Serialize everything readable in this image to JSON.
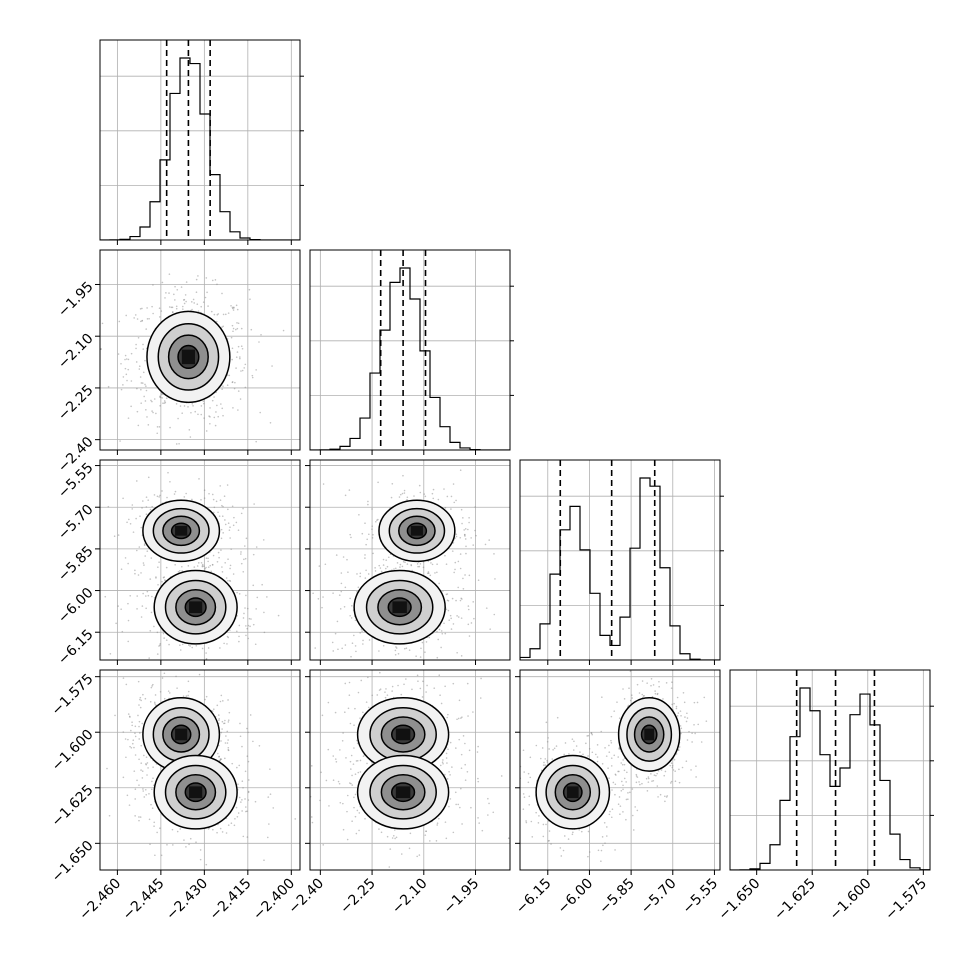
{
  "chart_data": {
    "type": "corner",
    "parameters": [
      {
        "index": 0,
        "range": [
          -2.466,
          -2.397
        ],
        "ticks": [
          -2.46,
          -2.445,
          -2.43,
          -2.415,
          -2.4
        ],
        "tick_labels": [
          "−2.460",
          "−2.445",
          "−2.430",
          "−2.415",
          "−2.400"
        ],
        "quantiles": [
          -2.443,
          -2.4355,
          -2.428
        ],
        "modes": [
          {
            "mu": -2.4355,
            "sd": 0.0065,
            "w": 1
          }
        ]
      },
      {
        "index": 1,
        "range": [
          -2.43,
          -1.85
        ],
        "ticks": [
          -2.4,
          -2.25,
          -2.1,
          -1.95
        ],
        "tick_labels": [
          "−2.40",
          "−2.25",
          "−2.10",
          "−1.95"
        ],
        "quantiles": [
          -2.225,
          -2.16,
          -2.095
        ],
        "modes": [
          {
            "mu": -2.16,
            "sd": 0.06,
            "w": 1
          }
        ]
      },
      {
        "index": 2,
        "range": [
          -6.25,
          -5.53
        ],
        "ticks": [
          -6.15,
          -6.0,
          -5.85,
          -5.7,
          -5.55
        ],
        "tick_labels": [
          "−6.15",
          "−6.00",
          "−5.85",
          "−5.70",
          "−5.55"
        ],
        "quantiles": [
          -6.105,
          -5.92,
          -5.765
        ],
        "modes": [
          {
            "mu": -6.06,
            "sd": 0.06,
            "w": 0.5
          },
          {
            "mu": -5.785,
            "sd": 0.05,
            "w": 0.5
          }
        ]
      },
      {
        "index": 3,
        "range": [
          -1.662,
          -1.572
        ],
        "ticks": [
          -1.65,
          -1.625,
          -1.6,
          -1.575
        ],
        "tick_labels": [
          "−1.650",
          "−1.625",
          "−1.600",
          "−1.575"
        ],
        "quantiles": [
          -1.632,
          -1.6145,
          -1.597
        ],
        "modes": [
          {
            "mu": -1.627,
            "sd": 0.0075,
            "w": 0.5
          },
          {
            "mu": -1.601,
            "sd": 0.0075,
            "w": 0.5
          }
        ]
      }
    ],
    "pair_modes": {
      "1-0": [
        {
          "x": -2.4355,
          "y": -2.16,
          "sx": 0.0065,
          "sy": 0.06
        }
      ],
      "2-0": [
        {
          "x": -2.438,
          "y": -5.785,
          "sx": 0.006,
          "sy": 0.05
        },
        {
          "x": -2.433,
          "y": -6.06,
          "sx": 0.0065,
          "sy": 0.06
        }
      ],
      "2-1": [
        {
          "x": -2.12,
          "y": -5.785,
          "sx": 0.05,
          "sy": 0.05
        },
        {
          "x": -2.17,
          "y": -6.06,
          "sx": 0.06,
          "sy": 0.06
        }
      ],
      "3-0": [
        {
          "x": -2.438,
          "y": -1.601,
          "sx": 0.006,
          "sy": 0.0075
        },
        {
          "x": -2.433,
          "y": -1.627,
          "sx": 0.0065,
          "sy": 0.0075
        }
      ],
      "3-1": [
        {
          "x": -2.16,
          "y": -1.601,
          "sx": 0.06,
          "sy": 0.0075
        },
        {
          "x": -2.16,
          "y": -1.627,
          "sx": 0.06,
          "sy": 0.0075
        }
      ],
      "3-2": [
        {
          "x": -5.785,
          "y": -1.601,
          "sx": 0.05,
          "sy": 0.0075
        },
        {
          "x": -6.06,
          "y": -1.627,
          "sx": 0.06,
          "sy": 0.0075
        }
      ]
    },
    "contour_levels": [
      0.2,
      0.45,
      0.75,
      0.93
    ],
    "grid": true,
    "show_quantiles": true,
    "show_contours": true,
    "show_density": true,
    "show_scatter_points": true
  }
}
